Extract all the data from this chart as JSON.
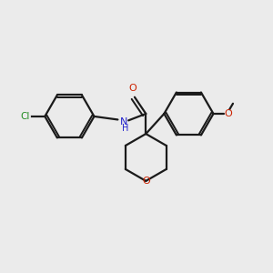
{
  "background_color": "#ebebeb",
  "bond_color": "#1a1a1a",
  "cl_color": "#228B22",
  "n_color": "#2222cc",
  "o_color": "#cc2200",
  "line_width": 1.6,
  "dbo": 0.055,
  "figsize": [
    3.0,
    3.0
  ],
  "dpi": 100,
  "xlim": [
    0,
    10
  ],
  "ylim": [
    0,
    10
  ]
}
